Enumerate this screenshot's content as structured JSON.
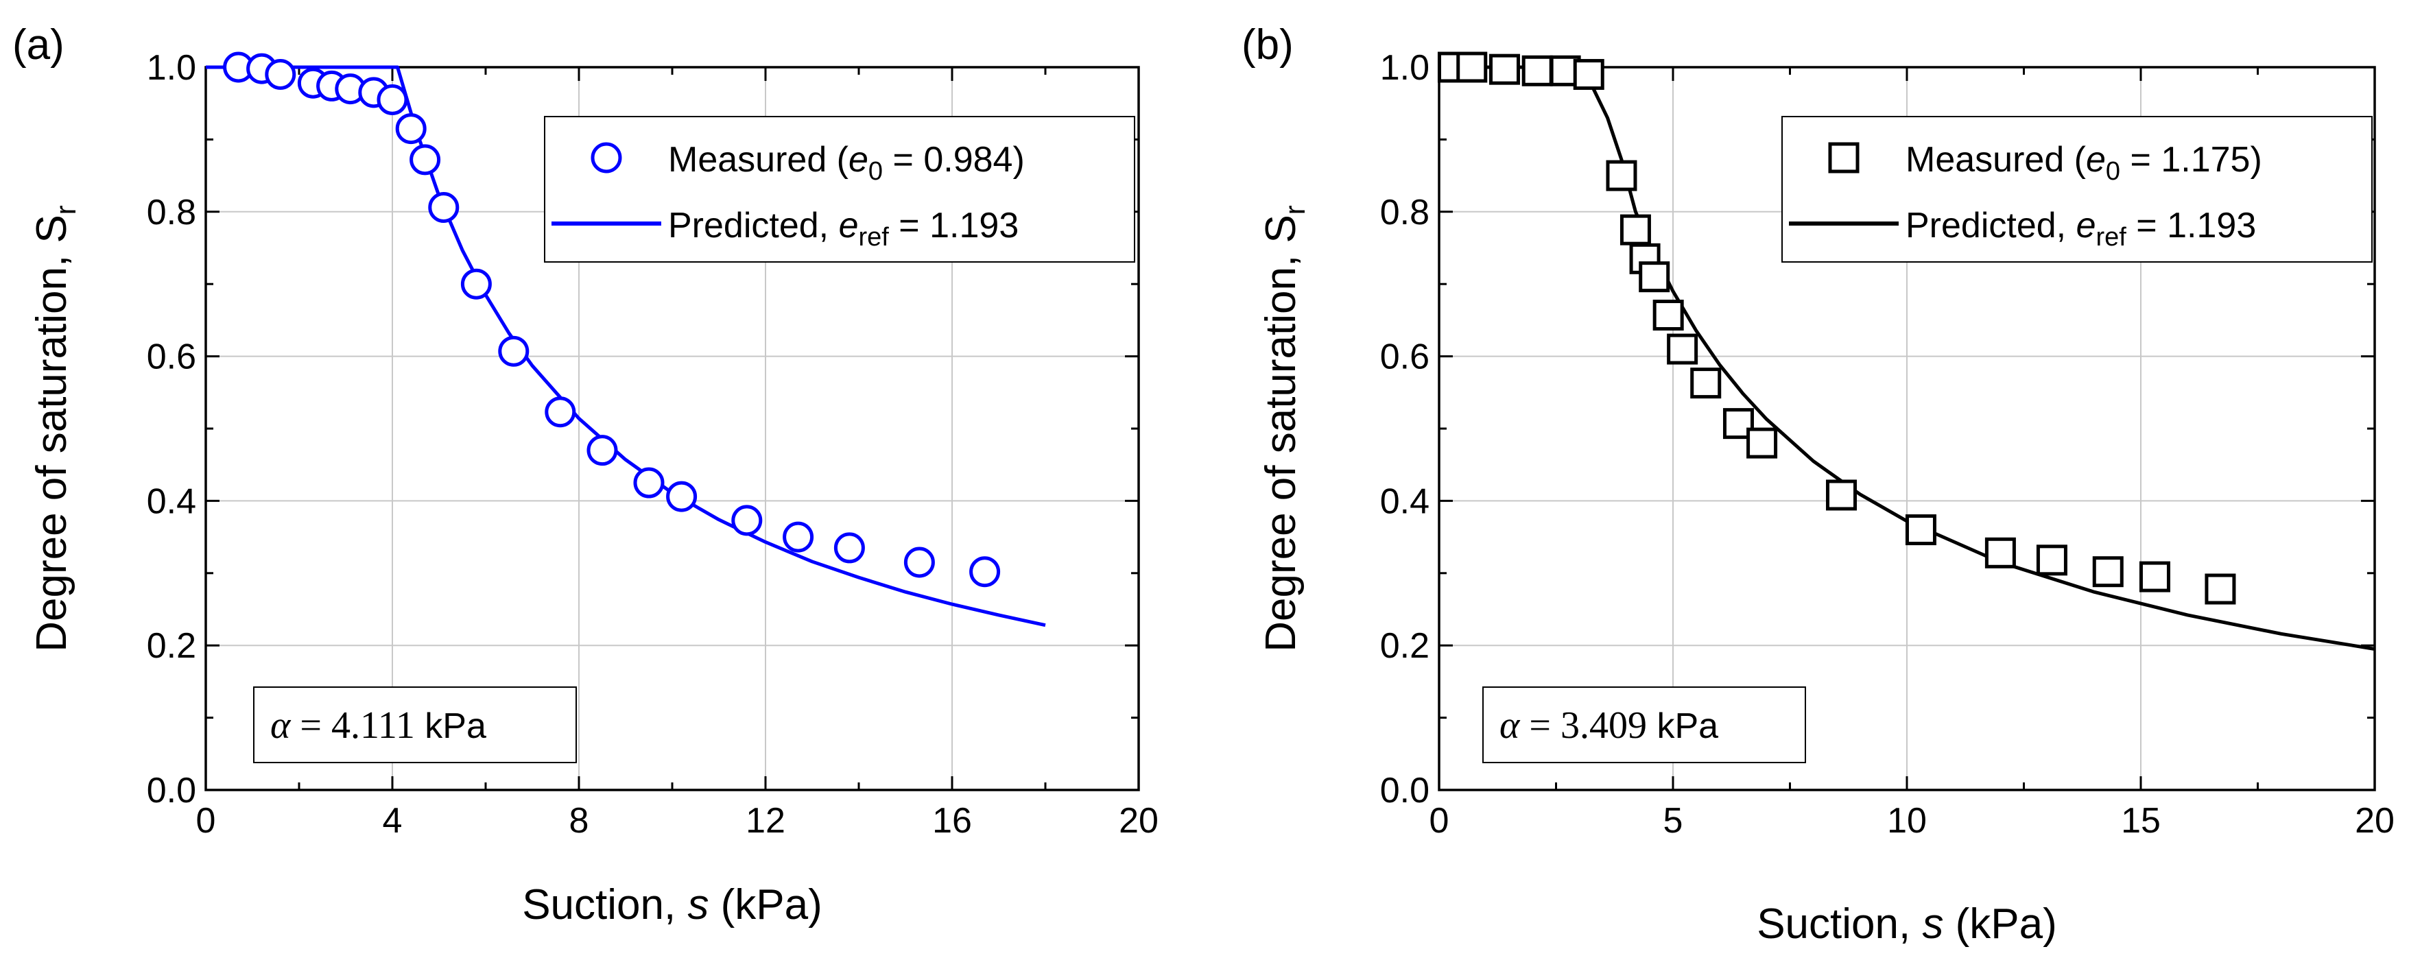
{
  "colors": {
    "panel_a": "#0000ff",
    "panel_b": "#000000"
  },
  "chart_data": [
    {
      "panel": "(a)",
      "type": "scatter",
      "xlabel": {
        "main": "Suction, ",
        "italic": "s",
        "unit": " (kPa)"
      },
      "ylabel": {
        "main": "Degree of saturation, S",
        "sub": "r"
      },
      "xlim": [
        0,
        20
      ],
      "ylim": [
        0,
        1
      ],
      "xticks": [
        0,
        4,
        8,
        12,
        16,
        20
      ],
      "xtick_labels": [
        "0",
        "4",
        "8",
        "12",
        "16",
        "20"
      ],
      "yticks": [
        0,
        0.2,
        0.4,
        0.6,
        0.8,
        1.0
      ],
      "ytick_labels": [
        "0.0",
        "0.2",
        "0.4",
        "0.6",
        "0.8",
        "1.0"
      ],
      "grid": true,
      "legend": {
        "position": "top-right",
        "measured": {
          "pre": "Measured (",
          "ital": "e",
          "sub": "0",
          "post": " = 0.984)"
        },
        "predicted": {
          "pre": "Predicted, ",
          "ital": "e",
          "sub": "ref",
          "post": " = 1.193"
        }
      },
      "annotation": {
        "alpha": "α",
        "value": " = 4.111",
        "unit": " kPa"
      },
      "series": [
        {
          "name": "Measured",
          "marker": "circle",
          "x": [
            0.7,
            1.2,
            1.6,
            2.3,
            2.7,
            3.1,
            3.6,
            4.0,
            4.4,
            4.7,
            5.1,
            5.8,
            6.6,
            7.6,
            8.5,
            9.5,
            10.2,
            11.6,
            12.7,
            13.8,
            15.3,
            16.7
          ],
          "y": [
            1.0,
            0.998,
            0.99,
            0.978,
            0.974,
            0.97,
            0.965,
            0.955,
            0.915,
            0.872,
            0.806,
            0.7,
            0.607,
            0.523,
            0.47,
            0.425,
            0.406,
            0.373,
            0.35,
            0.335,
            0.315,
            0.302
          ]
        },
        {
          "name": "Predicted",
          "line": true,
          "x": [
            0,
            2.0,
            3.5,
            4.111,
            4.5,
            5.0,
            5.5,
            6.0,
            6.5,
            7.0,
            8.0,
            9.0,
            10.0,
            11.0,
            12.0,
            13.0,
            14.0,
            15.0,
            16.0,
            17.0,
            18.0
          ],
          "y": [
            1.0,
            1.0,
            1.0,
            1.0,
            0.915,
            0.822,
            0.747,
            0.685,
            0.632,
            0.587,
            0.514,
            0.457,
            0.411,
            0.374,
            0.343,
            0.316,
            0.294,
            0.274,
            0.257,
            0.242,
            0.228
          ]
        }
      ]
    },
    {
      "panel": "(b)",
      "type": "scatter",
      "xlabel": {
        "main": "Suction, ",
        "italic": "s",
        "unit": " (kPa)"
      },
      "ylabel": {
        "main": "Degree of saturation, S",
        "sub": "r"
      },
      "xlim": [
        0,
        20
      ],
      "ylim": [
        0,
        1
      ],
      "xticks": [
        0,
        5,
        10,
        15,
        20
      ],
      "xtick_labels": [
        "0",
        "5",
        "10",
        "15",
        "20"
      ],
      "yticks": [
        0,
        0.2,
        0.4,
        0.6,
        0.8,
        1.0
      ],
      "ytick_labels": [
        "0.0",
        "0.2",
        "0.4",
        "0.6",
        "0.8",
        "1.0"
      ],
      "grid": true,
      "legend": {
        "position": "top-right",
        "measured": {
          "pre": "Measured (",
          "ital": "e",
          "sub": "0",
          "post": " = 1.175)"
        },
        "predicted": {
          "pre": "Predicted, ",
          "ital": "e",
          "sub": "ref",
          "post": " = 1.193"
        }
      },
      "annotation": {
        "alpha": "α",
        "value": " = 3.409",
        "unit": " kPa"
      },
      "series": [
        {
          "name": "Measured",
          "marker": "square",
          "x": [
            0.3,
            0.7,
            1.4,
            2.1,
            2.7,
            3.2,
            3.9,
            4.2,
            4.4,
            4.6,
            4.9,
            5.2,
            5.7,
            6.4,
            6.9,
            8.6,
            10.3,
            12.0,
            13.1,
            14.3,
            15.3,
            16.7
          ],
          "y": [
            1.0,
            1.0,
            0.997,
            0.995,
            0.995,
            0.99,
            0.85,
            0.775,
            0.735,
            0.71,
            0.657,
            0.61,
            0.563,
            0.507,
            0.48,
            0.408,
            0.36,
            0.328,
            0.318,
            0.302,
            0.295,
            0.278
          ]
        },
        {
          "name": "Predicted",
          "line": true,
          "x": [
            0,
            2.0,
            2.7,
            3.0,
            3.3,
            3.6,
            3.9,
            4.2,
            4.5,
            5.0,
            5.5,
            6.0,
            6.5,
            7.0,
            8.0,
            9.0,
            10.0,
            12.0,
            14.0,
            16.0,
            18.0,
            20.0
          ],
          "y": [
            1.0,
            1.0,
            0.998,
            0.99,
            0.97,
            0.93,
            0.872,
            0.8,
            0.755,
            0.69,
            0.635,
            0.588,
            0.548,
            0.513,
            0.455,
            0.409,
            0.372,
            0.315,
            0.274,
            0.242,
            0.216,
            0.195
          ]
        }
      ]
    }
  ]
}
